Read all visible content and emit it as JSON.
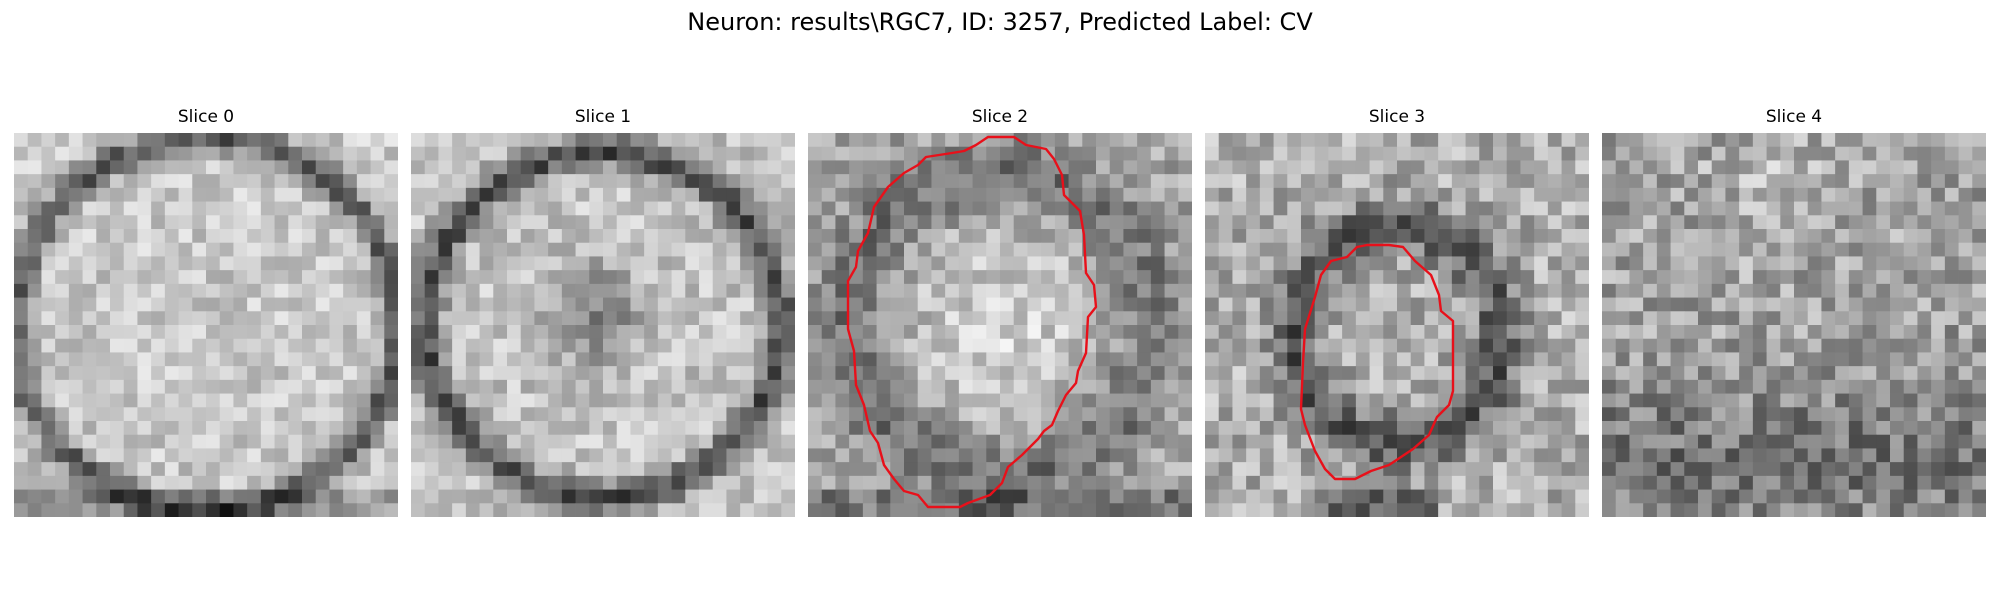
{
  "figure": {
    "title": "Neuron: results\\RGC7, ID: 3257, Predicted Label: CV"
  },
  "slices": [
    {
      "title": "Slice 0",
      "has_contour": false
    },
    {
      "title": "Slice 1",
      "has_contour": false
    },
    {
      "title": "Slice 2",
      "has_contour": true
    },
    {
      "title": "Slice 3",
      "has_contour": true
    },
    {
      "title": "Slice 4",
      "has_contour": false
    }
  ],
  "colors": {
    "contour": "#e8101a",
    "background": "#ffffff"
  }
}
